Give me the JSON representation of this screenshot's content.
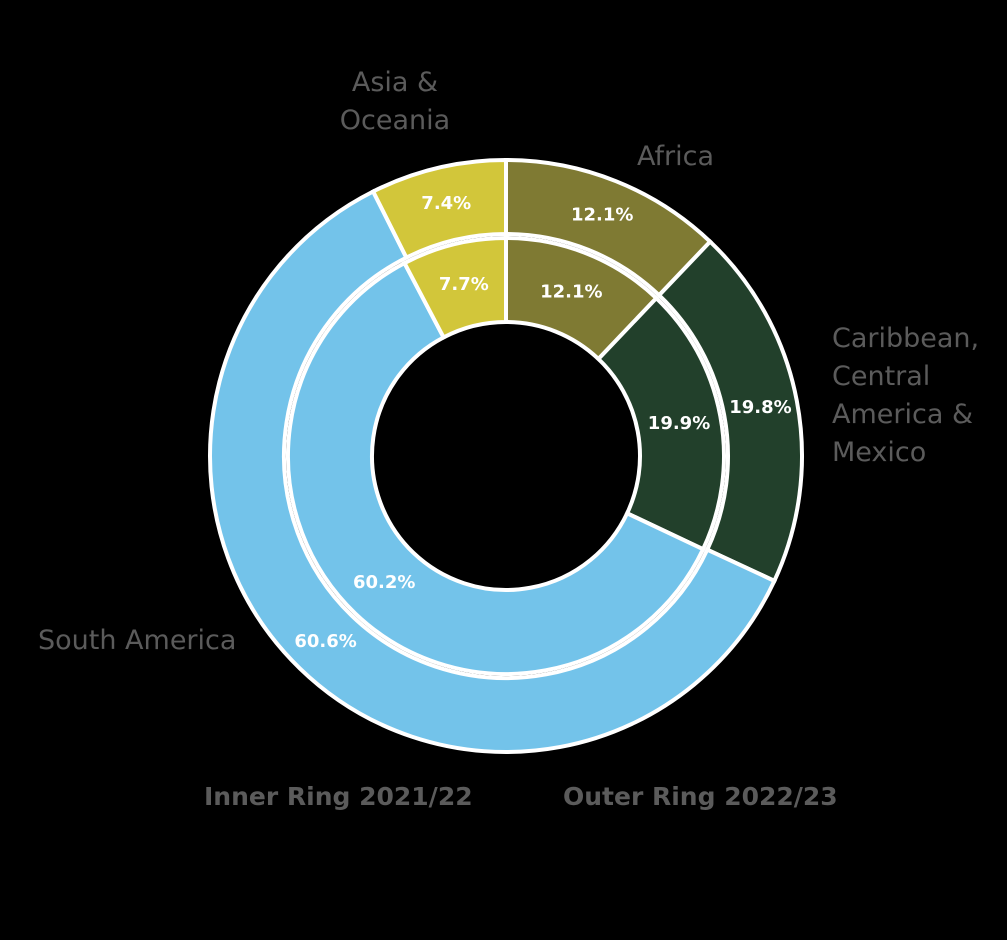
{
  "chart_data": {
    "type": "donut",
    "categories": [
      "Africa",
      "Caribbean, Central America & Mexico",
      "South America",
      "Asia & Oceania"
    ],
    "colors": [
      "#7f7a33",
      "#22402b",
      "#73c3ea",
      "#d2c63a"
    ],
    "series": [
      {
        "name": "Outer Ring 2022/23",
        "values": [
          12.1,
          19.8,
          60.6,
          7.4
        ],
        "value_labels": [
          "12.1%",
          "19.8%",
          "60.6%",
          "7.4%"
        ]
      },
      {
        "name": "Inner Ring 2021/22",
        "values": [
          12.1,
          19.9,
          60.2,
          7.7
        ],
        "value_labels": [
          "12.1%",
          "19.9%",
          "60.2%",
          "7.7%"
        ]
      }
    ]
  }
}
